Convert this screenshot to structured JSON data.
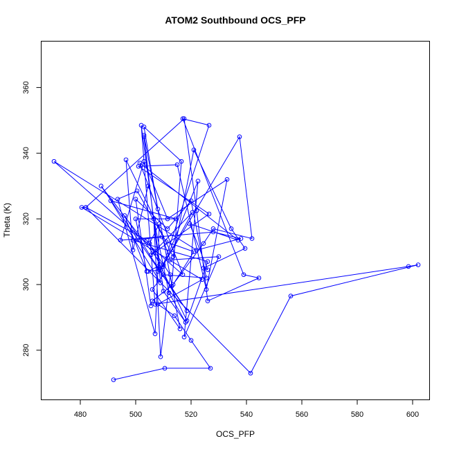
{
  "chart_data": {
    "type": "line",
    "title": "ATOM2 Southbound OCS_PFP",
    "xlabel": "OCS_PFP",
    "ylabel": "Theta (K)",
    "xlim": [
      466,
      606
    ],
    "ylim": [
      265,
      374
    ],
    "xticks": [
      480,
      500,
      520,
      540,
      560,
      580,
      600
    ],
    "yticks": [
      280,
      300,
      320,
      340,
      360
    ],
    "grid": false,
    "series_color": "#0000ff",
    "x": [
      492.0,
      510.5,
      527.0,
      520.0,
      514.0,
      508.0,
      524.0,
      480.5,
      482.0,
      541.5,
      556.0,
      602.0,
      598.5,
      507.0,
      502.0,
      510.0,
      518.0,
      512.0,
      506.5,
      509.0,
      512.5,
      504.0,
      482.0,
      517.5,
      522.0,
      526.0,
      544.5,
      539.0,
      517.0,
      526.5,
      510.0,
      537.5,
      542.0,
      528.0,
      524.5,
      513.0,
      516.5,
      503.0,
      508.0,
      504.5,
      499.0,
      496.5,
      513.5,
      521.0,
      534.5,
      539.5,
      524.5,
      526.0,
      519.5,
      537.0,
      501.5,
      517.0,
      470.5,
      522.0,
      538.0,
      528.0,
      494.5,
      503.0,
      511.5,
      533.0,
      525.5,
      515.0,
      501.0,
      526.5,
      505.5,
      520.5,
      509.0,
      504.5,
      508.0,
      518.5,
      487.5,
      510.0,
      522.5,
      517.5,
      530.0,
      512.5,
      509.5,
      499.0,
      526.0,
      518.5,
      505.0,
      508.5,
      508.0,
      507.0,
      493.5,
      500.5,
      511.0,
      521.0,
      513.5,
      506.0,
      505.5,
      500.0,
      511.5,
      520.0,
      525.5,
      510.0,
      506.0,
      516.0,
      503.0,
      509.0,
      491.0,
      514.5,
      500.0,
      504.0,
      496.0,
      508.5,
      503.0
    ],
    "y": [
      271.0,
      274.5,
      274.5,
      283.0,
      290.5,
      294.0,
      301.5,
      323.5,
      323.5,
      273.0,
      296.5,
      306.0,
      305.5,
      294.0,
      348.5,
      298.0,
      288.5,
      297.5,
      320.0,
      278.0,
      303.0,
      313.5,
      323.5,
      350.5,
      322.5,
      295.0,
      302.0,
      303.0,
      350.5,
      348.5,
      306.0,
      345.0,
      314.0,
      317.0,
      312.5,
      299.5,
      337.5,
      348.0,
      323.0,
      330.0,
      310.5,
      338.0,
      308.5,
      341.0,
      317.0,
      311.0,
      305.0,
      304.5,
      318.5,
      313.5,
      337.0,
      303.0,
      337.5,
      310.5,
      314.0,
      316.0,
      313.5,
      337.5,
      320.0,
      332.0,
      298.5,
      336.5,
      336.0,
      321.5,
      309.0,
      322.0,
      304.5,
      304.0,
      305.5,
      292.0,
      330.0,
      305.5,
      331.5,
      284.0,
      308.5,
      307.5,
      314.5,
      313.5,
      307.0,
      289.0,
      312.5,
      318.5,
      304.0,
      285.0,
      326.0,
      328.5,
      313.0,
      310.0,
      300.0,
      295.0,
      293.5,
      326.0,
      317.0,
      325.5,
      302.0,
      303.0,
      298.5,
      286.5,
      345.5,
      300.5,
      325.5,
      320.0,
      320.0,
      304.0,
      321.0,
      304.5,
      345.0
    ]
  }
}
